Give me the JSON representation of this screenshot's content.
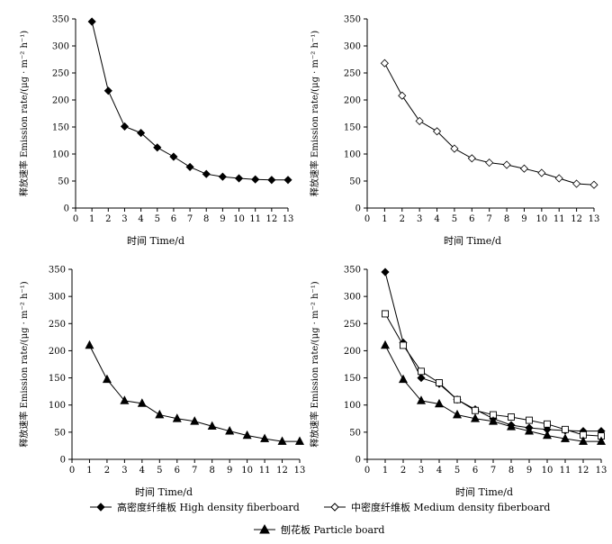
{
  "chart_data": [
    {
      "type": "line",
      "title": "",
      "xlabel": "时间 Time/d",
      "ylabel": "释放速率 Emission rate/(μg · m⁻² h⁻¹)",
      "ylim": [
        0,
        350
      ],
      "xlim": [
        0,
        13
      ],
      "x": [
        1,
        2,
        3,
        4,
        5,
        6,
        7,
        8,
        9,
        10,
        11,
        12,
        13
      ],
      "series": [
        {
          "name": "高密度纤维板 High density fiberboard",
          "marker": "filled-diamond",
          "values": [
            345,
            217,
            151,
            139,
            112,
            95,
            76,
            63,
            58,
            55,
            53,
            52,
            52
          ]
        }
      ]
    },
    {
      "type": "line",
      "title": "",
      "xlabel": "时间 Time/d",
      "ylabel": "释放速率 Emission rate/(μg · m⁻² h⁻¹)",
      "ylim": [
        0,
        350
      ],
      "xlim": [
        0,
        13
      ],
      "x": [
        1,
        2,
        3,
        4,
        5,
        6,
        7,
        8,
        9,
        10,
        11,
        12,
        13
      ],
      "series": [
        {
          "name": "中密度纤维板 Medium density fiberboard",
          "marker": "open-diamond",
          "values": [
            268,
            208,
            161,
            142,
            110,
            92,
            84,
            80,
            73,
            65,
            55,
            45,
            43
          ]
        }
      ]
    },
    {
      "type": "line",
      "title": "",
      "xlabel": "时间 Time/d",
      "ylabel": "释放速率 Emission rate/(μg · m⁻² h⁻¹)",
      "ylim": [
        0,
        350
      ],
      "xlim": [
        0,
        13
      ],
      "x": [
        1,
        2,
        3,
        4,
        5,
        6,
        7,
        8,
        9,
        10,
        11,
        12,
        13
      ],
      "series": [
        {
          "name": "刨花板 Particle board",
          "marker": "filled-triangle",
          "values": [
            210,
            147,
            108,
            103,
            82,
            75,
            70,
            61,
            52,
            44,
            38,
            33,
            33
          ]
        }
      ]
    },
    {
      "type": "line",
      "title": "",
      "xlabel": "时间 Time/d",
      "ylabel": "释放速率 Emission rate/(μg · m⁻² h⁻¹)",
      "ylim": [
        0,
        350
      ],
      "xlim": [
        0,
        13
      ],
      "x": [
        1,
        2,
        3,
        4,
        5,
        6,
        7,
        8,
        9,
        10,
        11,
        12,
        13
      ],
      "series": [
        {
          "name": "高密度纤维板 High density fiberboard",
          "marker": "filled-diamond",
          "values": [
            345,
            215,
            150,
            139,
            110,
            92,
            75,
            63,
            58,
            55,
            53,
            52,
            52
          ]
        },
        {
          "name": "中密度纤维板 Medium density fiberboard",
          "marker": "open-square",
          "values": [
            268,
            210,
            162,
            141,
            110,
            90,
            82,
            78,
            72,
            65,
            55,
            45,
            43
          ]
        },
        {
          "name": "刨花板 Particle board",
          "marker": "filled-triangle",
          "values": [
            210,
            147,
            108,
            102,
            82,
            75,
            70,
            60,
            52,
            44,
            38,
            33,
            33
          ]
        }
      ]
    }
  ],
  "yticks": [
    0,
    50,
    100,
    150,
    200,
    250,
    300,
    350
  ],
  "xticks": [
    0,
    1,
    2,
    3,
    4,
    5,
    6,
    7,
    8,
    9,
    10,
    11,
    12,
    13
  ],
  "legend": {
    "high": "高密度纤维板 High density fiberboard",
    "medium": "中密度纤维板 Medium density fiberboard",
    "particle": "刨花板 Particle board"
  },
  "colors": {
    "line": "#000000",
    "background": "#ffffff"
  }
}
